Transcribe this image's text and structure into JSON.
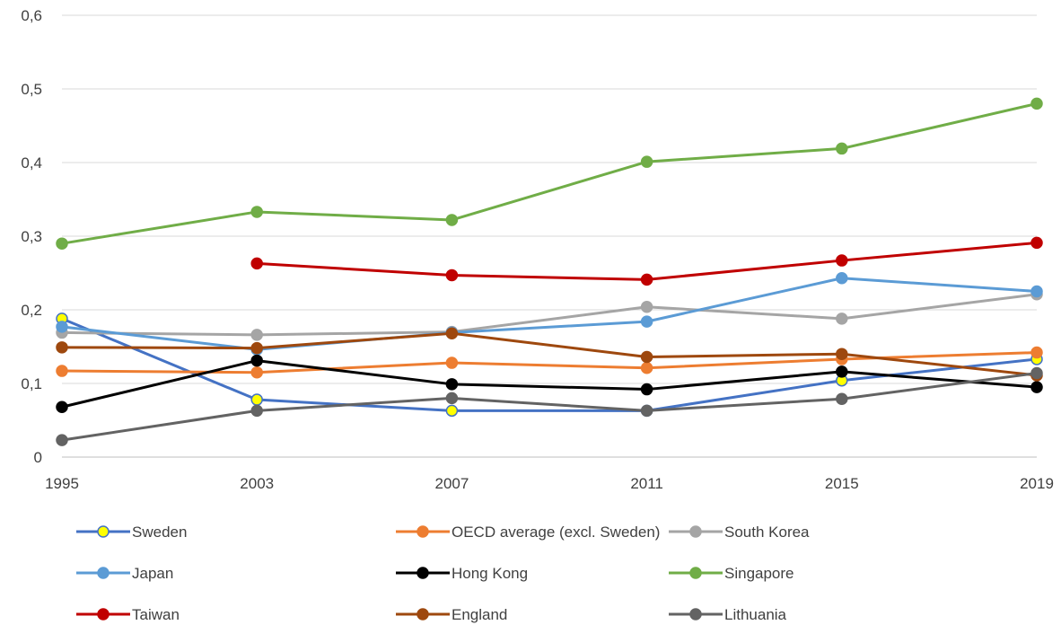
{
  "chart_data": {
    "type": "line",
    "x": [
      "1995",
      "2003",
      "2007",
      "2011",
      "2015",
      "2019"
    ],
    "ylim": [
      0,
      0.6
    ],
    "yticks": [
      "0",
      "0,1",
      "0,2",
      "0,3",
      "0,4",
      "0,5",
      "0,6"
    ],
    "ytick_values": [
      0,
      0.1,
      0.2,
      0.3,
      0.4,
      0.5,
      0.6
    ],
    "grid": true,
    "legend_position": "bottom",
    "series": [
      {
        "name": "Sweden",
        "color": "#4472C4",
        "marker_fill": "#FFFF00",
        "marker_stroke": "#4472C4",
        "values": [
          0.188,
          0.078,
          0.063,
          0.063,
          0.104,
          0.133
        ]
      },
      {
        "name": "OECD average (excl. Sweden)",
        "color": "#ED7D31",
        "marker_fill": "#ED7D31",
        "marker_stroke": "#ED7D31",
        "values": [
          0.117,
          0.115,
          0.128,
          0.121,
          0.133,
          0.142
        ]
      },
      {
        "name": "South Korea",
        "color": "#A5A5A5",
        "marker_fill": "#A5A5A5",
        "marker_stroke": "#A5A5A5",
        "values": [
          0.169,
          0.166,
          0.17,
          0.204,
          0.188,
          0.221
        ]
      },
      {
        "name": "Japan",
        "color": "#5B9BD5",
        "marker_fill": "#5B9BD5",
        "marker_stroke": "#5B9BD5",
        "values": [
          0.177,
          0.146,
          0.169,
          0.184,
          0.243,
          0.225
        ]
      },
      {
        "name": "Hong Kong",
        "color": "#000000",
        "marker_fill": "#000000",
        "marker_stroke": "#000000",
        "values": [
          0.068,
          0.131,
          0.099,
          0.092,
          0.116,
          0.095
        ]
      },
      {
        "name": "Singapore",
        "color": "#70AD47",
        "marker_fill": "#70AD47",
        "marker_stroke": "#70AD47",
        "values": [
          0.29,
          0.333,
          0.322,
          0.401,
          0.419,
          0.48
        ]
      },
      {
        "name": "Taiwan",
        "color": "#C00000",
        "marker_fill": "#C00000",
        "marker_stroke": "#C00000",
        "values": [
          null,
          0.263,
          0.247,
          0.241,
          0.267,
          0.291
        ]
      },
      {
        "name": "England",
        "color": "#9E480E",
        "marker_fill": "#9E480E",
        "marker_stroke": "#9E480E",
        "values": [
          0.149,
          0.148,
          0.168,
          0.136,
          0.14,
          0.111
        ]
      },
      {
        "name": "Lithuania",
        "color": "#636363",
        "marker_fill": "#636363",
        "marker_stroke": "#636363",
        "values": [
          0.023,
          0.063,
          0.08,
          0.063,
          0.079,
          0.114
        ]
      }
    ]
  }
}
